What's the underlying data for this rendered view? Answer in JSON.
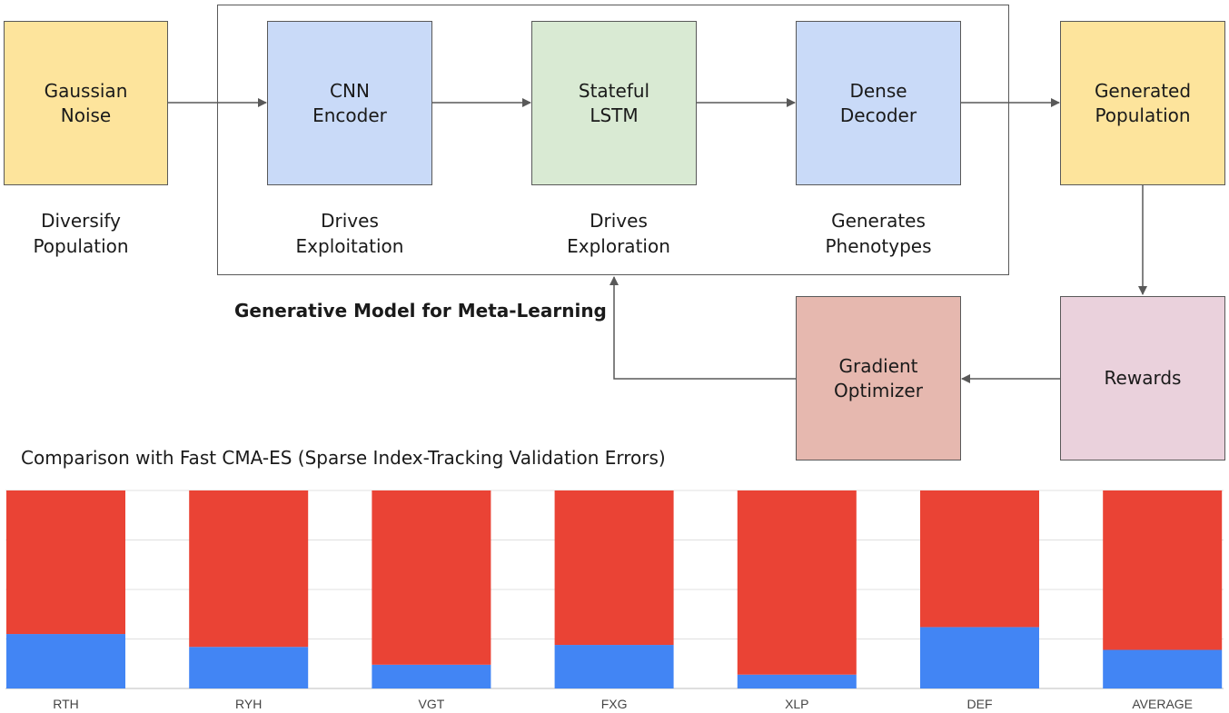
{
  "diagram": {
    "nodes": {
      "gaussian_noise": "Gaussian\nNoise",
      "cnn_encoder": "CNN\nEncoder",
      "stateful_lstm": "Stateful\nLSTM",
      "dense_decoder": "Dense\nDecoder",
      "generated_population": "Generated\nPopulation",
      "rewards": "Rewards",
      "gradient_optimizer": "Gradient\nOptimizer"
    },
    "captions": {
      "diversify": "Diversify\nPopulation",
      "exploitation": "Drives\nExploitation",
      "exploration": "Drives\nExploration",
      "phenotypes": "Generates\nPhenotypes"
    },
    "group_label": "Generative Model for Meta-Learning",
    "colors": {
      "yellow": "#fde49c",
      "blue": "#c9daf8",
      "green": "#d9ead3",
      "salmon": "#e6b8af",
      "pink": "#ead1dc"
    }
  },
  "chart_data": {
    "type": "bar",
    "stacked": true,
    "title": "Comparison with Fast CMA-ES (Sparse Index-Tracking Validation Errors)",
    "categories": [
      "RTH",
      "RYH",
      "VGT",
      "FXG",
      "XLP",
      "DEF",
      "AVERAGE"
    ],
    "ylim": [
      0,
      1
    ],
    "grid": true,
    "series": [
      {
        "color": "#4285f4",
        "values": [
          0.275,
          0.21,
          0.12,
          0.22,
          0.07,
          0.31,
          0.195
        ]
      },
      {
        "color": "#ea4335",
        "values": [
          0.725,
          0.79,
          0.88,
          0.78,
          0.93,
          0.69,
          0.805
        ]
      }
    ]
  }
}
